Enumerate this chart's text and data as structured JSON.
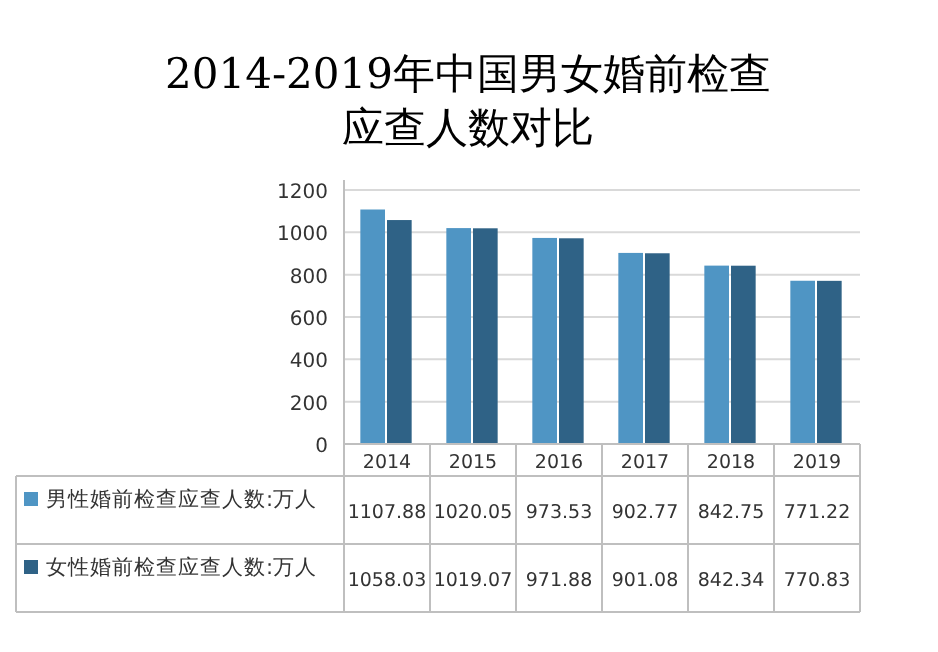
{
  "chart_data": {
    "type": "bar",
    "title": "2014-2019年中国男女婚前检查应查人数对比",
    "categories": [
      "2014",
      "2015",
      "2016",
      "2017",
      "2018",
      "2019"
    ],
    "series": [
      {
        "name": "男性婚前检查应查人数:万人",
        "color": "#4f95c4",
        "values": [
          1107.88,
          1020.05,
          973.53,
          902.77,
          842.75,
          771.22
        ]
      },
      {
        "name": "女性婚前检查应查人数:万人",
        "color": "#2f6286",
        "values": [
          1058.03,
          1019.07,
          971.88,
          901.08,
          842.34,
          770.83
        ]
      }
    ],
    "ylim": [
      0,
      1200
    ],
    "yticks": [
      0,
      200,
      400,
      600,
      800,
      1000,
      1200
    ],
    "grid": "y",
    "legend": "left",
    "data_labels": true
  }
}
